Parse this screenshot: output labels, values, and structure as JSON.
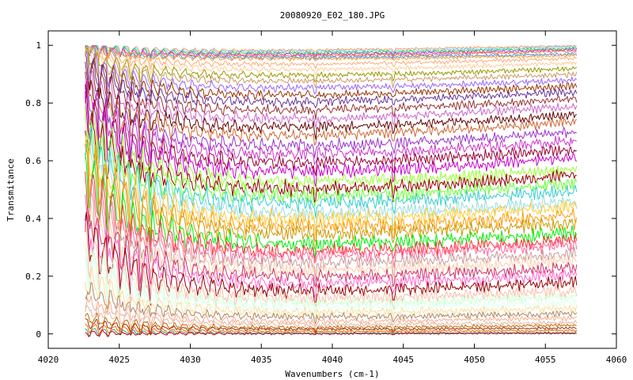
{
  "chart_data": {
    "type": "line",
    "title": "20080920_E02_180.JPG",
    "xlabel": "Wavenumbers (cm-1)",
    "ylabel": "Transmitance",
    "xlim": [
      4020,
      4060
    ],
    "ylim": [
      -0.05,
      1.05
    ],
    "x_ticks": [
      4020,
      4025,
      4030,
      4035,
      4040,
      4045,
      4050,
      4055,
      4060
    ],
    "y_ticks": [
      0,
      0.2,
      0.4,
      0.6,
      0.8,
      1
    ],
    "x_tick_labels": [
      "4020",
      "4025",
      "4030",
      "4035",
      "4040",
      "4045",
      "4050",
      "4055",
      "4060"
    ],
    "y_tick_labels": [
      "0",
      "0.2",
      "0.4",
      "0.6",
      "0.8",
      "1"
    ],
    "x_start": 4022.6,
    "x_end": 4057.2,
    "grid": false,
    "legend": "none",
    "absorption_lines": [
      4022.9,
      4023.6,
      4024.2,
      4025.1,
      4025.8,
      4026.5,
      4027.2,
      4038.8,
      4044.3
    ],
    "series": [
      {
        "color": "#ff9966",
        "start": 1.0,
        "min": 0.98,
        "end": 1.0
      },
      {
        "color": "#66ccff",
        "start": 0.998,
        "min": 0.975,
        "end": 0.995
      },
      {
        "color": "#33cc33",
        "start": 0.996,
        "min": 0.97,
        "end": 0.99
      },
      {
        "color": "#cc33ff",
        "start": 0.994,
        "min": 0.965,
        "end": 0.985
      },
      {
        "color": "#ff6633",
        "start": 0.992,
        "min": 0.96,
        "end": 0.98
      },
      {
        "color": "#3399ff",
        "start": 0.99,
        "min": 0.955,
        "end": 0.97
      },
      {
        "color": "#ff9933",
        "start": 0.99,
        "min": 0.95,
        "end": 0.965
      },
      {
        "color": "#ffaa77",
        "start": 0.985,
        "min": 0.93,
        "end": 0.955
      },
      {
        "color": "#ffcc99",
        "start": 0.98,
        "min": 0.91,
        "end": 0.94
      },
      {
        "color": "#999900",
        "start": 0.97,
        "min": 0.89,
        "end": 0.92
      },
      {
        "color": "#cc9966",
        "start": 0.96,
        "min": 0.87,
        "end": 0.9
      },
      {
        "color": "#9966ff",
        "start": 0.95,
        "min": 0.845,
        "end": 0.88
      },
      {
        "color": "#993300",
        "start": 0.94,
        "min": 0.82,
        "end": 0.86
      },
      {
        "color": "#663399",
        "start": 0.93,
        "min": 0.795,
        "end": 0.84
      },
      {
        "color": "#993333",
        "start": 0.91,
        "min": 0.765,
        "end": 0.815
      },
      {
        "color": "#cc66cc",
        "start": 0.89,
        "min": 0.735,
        "end": 0.79
      },
      {
        "color": "#660000",
        "start": 0.87,
        "min": 0.705,
        "end": 0.76
      },
      {
        "color": "#cc6633",
        "start": 0.85,
        "min": 0.675,
        "end": 0.735
      },
      {
        "color": "#9933cc",
        "start": 0.83,
        "min": 0.64,
        "end": 0.7
      },
      {
        "color": "#cc33cc",
        "start": 0.81,
        "min": 0.61,
        "end": 0.67
      },
      {
        "color": "#990033",
        "start": 0.79,
        "min": 0.58,
        "end": 0.64
      },
      {
        "color": "#cc00cc",
        "start": 0.77,
        "min": 0.55,
        "end": 0.61
      },
      {
        "color": "#99ff33",
        "start": 0.75,
        "min": 0.515,
        "end": 0.57
      },
      {
        "color": "#990000",
        "start": 0.73,
        "min": 0.49,
        "end": 0.55
      },
      {
        "color": "#66ff33",
        "start": 0.71,
        "min": 0.465,
        "end": 0.52
      },
      {
        "color": "#33cccc",
        "start": 0.69,
        "min": 0.44,
        "end": 0.495
      },
      {
        "color": "#99dddd",
        "start": 0.67,
        "min": 0.405,
        "end": 0.46
      },
      {
        "color": "#ffcc33",
        "start": 0.65,
        "min": 0.385,
        "end": 0.44
      },
      {
        "color": "#ff9900",
        "start": 0.62,
        "min": 0.36,
        "end": 0.41
      },
      {
        "color": "#cc9900",
        "start": 0.59,
        "min": 0.335,
        "end": 0.385
      },
      {
        "color": "#00ee00",
        "start": 0.56,
        "min": 0.3,
        "end": 0.35
      },
      {
        "color": "#ff3333",
        "start": 0.53,
        "min": 0.275,
        "end": 0.325
      },
      {
        "color": "#ff6699",
        "start": 0.5,
        "min": 0.26,
        "end": 0.31
      },
      {
        "color": "#cc9999",
        "start": 0.47,
        "min": 0.235,
        "end": 0.28
      },
      {
        "color": "#ffccaa",
        "start": 0.44,
        "min": 0.21,
        "end": 0.255
      },
      {
        "color": "#cc3366",
        "start": 0.41,
        "min": 0.19,
        "end": 0.23
      },
      {
        "color": "#ff66cc",
        "start": 0.38,
        "min": 0.165,
        "end": 0.205
      },
      {
        "color": "#990000",
        "start": 0.35,
        "min": 0.14,
        "end": 0.18
      },
      {
        "color": "#ffbbaa",
        "start": 0.31,
        "min": 0.115,
        "end": 0.15
      },
      {
        "color": "#ccffcc",
        "start": 0.27,
        "min": 0.1,
        "end": 0.13
      },
      {
        "color": "#ddffee",
        "start": 0.24,
        "min": 0.085,
        "end": 0.11
      },
      {
        "color": "#ffdd99",
        "start": 0.2,
        "min": 0.07,
        "end": 0.09
      },
      {
        "color": "#aa8866",
        "start": 0.16,
        "min": 0.055,
        "end": 0.07
      },
      {
        "color": "#ffaa88",
        "start": 0.12,
        "min": 0.04,
        "end": 0.055
      },
      {
        "color": "#ddbbaa",
        "start": 0.09,
        "min": 0.03,
        "end": 0.04
      },
      {
        "color": "#cc6600",
        "start": 0.06,
        "min": 0.02,
        "end": 0.03
      },
      {
        "color": "#993300",
        "start": 0.04,
        "min": 0.015,
        "end": 0.02
      },
      {
        "color": "#ff6600",
        "start": 0.025,
        "min": 0.008,
        "end": 0.012
      },
      {
        "color": "#339999",
        "start": 0.012,
        "min": 0.003,
        "end": 0.005
      },
      {
        "color": "#cc0000",
        "start": 0.005,
        "min": 0.0,
        "end": 0.002
      }
    ]
  }
}
